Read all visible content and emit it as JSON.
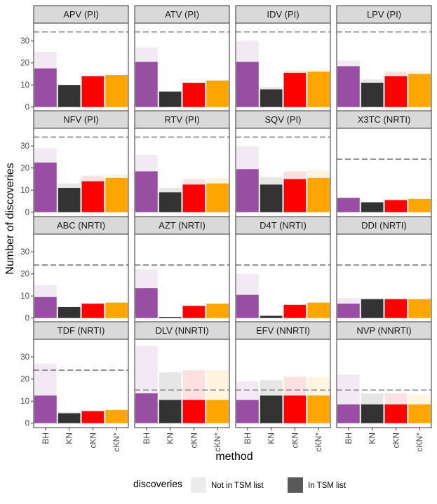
{
  "chart_data": {
    "type": "bar",
    "ylabel": "Number of discoveries",
    "xlabel": "method",
    "ylim": [
      -2,
      38
    ],
    "yticks": [
      0,
      10,
      20,
      30
    ],
    "categories": [
      "BH",
      "KN",
      "cKN",
      "cKN*"
    ],
    "colors": {
      "BH": "#984ea3",
      "KN": "#333333",
      "cKN": "#ff0000",
      "cKN*": "#ffa500"
    },
    "legend": {
      "title": "discoveries",
      "position": "bottom",
      "items": [
        {
          "label": "Not in TSM list",
          "swatch": "#ebebeb"
        },
        {
          "label": "In TSM list",
          "swatch": "#595959"
        }
      ]
    },
    "panels": [
      {
        "title": "APV (PI)",
        "threshold": 34,
        "total": [
          25,
          10,
          14,
          14.5
        ],
        "in_tsm": [
          17.5,
          10,
          14,
          14.5
        ]
      },
      {
        "title": "ATV (PI)",
        "threshold": 34,
        "total": [
          27,
          7,
          11,
          12
        ],
        "in_tsm": [
          20.5,
          7,
          11,
          12
        ]
      },
      {
        "title": "IDV (PI)",
        "threshold": 34,
        "total": [
          30,
          9,
          16.5,
          17
        ],
        "in_tsm": [
          20.5,
          8,
          15.5,
          16
        ]
      },
      {
        "title": "LPV (PI)",
        "threshold": 34,
        "total": [
          21,
          12.5,
          16,
          16.5
        ],
        "in_tsm": [
          18.5,
          11,
          14,
          15
        ]
      },
      {
        "title": "NFV (PI)",
        "threshold": 34,
        "total": [
          29,
          13,
          16.5,
          17
        ],
        "in_tsm": [
          22.5,
          11,
          14,
          15.5
        ]
      },
      {
        "title": "RTV (PI)",
        "threshold": 34,
        "total": [
          26,
          11,
          15,
          15.5
        ],
        "in_tsm": [
          18.5,
          9,
          12.5,
          13
        ]
      },
      {
        "title": "SQV (PI)",
        "threshold": 34,
        "total": [
          30,
          16,
          18.5,
          19
        ],
        "in_tsm": [
          19.5,
          12.5,
          15,
          15.5
        ]
      },
      {
        "title": "X3TC (NRTI)",
        "threshold": 24,
        "total": [
          6.5,
          4.5,
          5.5,
          6
        ],
        "in_tsm": [
          6.5,
          4.5,
          5.5,
          6
        ]
      },
      {
        "title": "ABC (NRTI)",
        "threshold": 24,
        "total": [
          15,
          5,
          6.5,
          7
        ],
        "in_tsm": [
          9.5,
          5,
          6.5,
          7
        ]
      },
      {
        "title": "AZT (NRTI)",
        "threshold": 24,
        "total": [
          22,
          0.5,
          5.5,
          6.5
        ],
        "in_tsm": [
          13.5,
          0.5,
          5.5,
          6.5
        ]
      },
      {
        "title": "D4T (NRTI)",
        "threshold": 24,
        "total": [
          20,
          1,
          6,
          7
        ],
        "in_tsm": [
          10.5,
          1,
          6,
          7
        ]
      },
      {
        "title": "DDI (NRTI)",
        "threshold": 24,
        "total": [
          9,
          9,
          9,
          9
        ],
        "in_tsm": [
          6.5,
          8.5,
          8.5,
          8.5
        ]
      },
      {
        "title": "TDF (NRTI)",
        "threshold": 24,
        "total": [
          27,
          5,
          5.5,
          6
        ],
        "in_tsm": [
          12.5,
          4.5,
          5.5,
          6
        ]
      },
      {
        "title": "DLV (NNRTI)",
        "threshold": 15,
        "total": [
          35,
          23,
          24,
          24
        ],
        "in_tsm": [
          13.5,
          10.5,
          10.5,
          10.5
        ]
      },
      {
        "title": "EFV (NNRTI)",
        "threshold": 15,
        "total": [
          19,
          19.5,
          21,
          21
        ],
        "in_tsm": [
          10.5,
          12.5,
          12.5,
          12.5
        ]
      },
      {
        "title": "NVP (NNRTI)",
        "threshold": 15,
        "total": [
          22,
          13.5,
          13.5,
          13
        ],
        "in_tsm": [
          8.5,
          8.5,
          8.5,
          8.5
        ]
      }
    ]
  }
}
